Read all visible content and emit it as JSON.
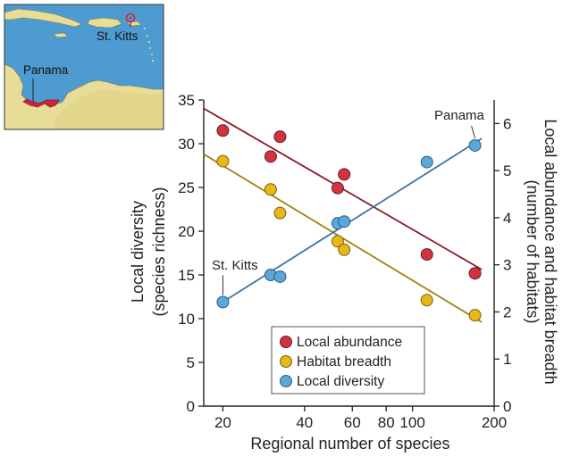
{
  "chart_data": {
    "type": "scatter",
    "title": "",
    "xlabel": "Regional number of species",
    "ylabel_left": [
      "Local diversity",
      "(species richness)"
    ],
    "ylabel_right": [
      "Local abundance and habitat breadth",
      "(number of habitats)"
    ],
    "x_scale": "log",
    "xlim": [
      17,
      200
    ],
    "xticks": [
      20,
      40,
      60,
      80,
      100,
      200
    ],
    "xtick_labels": [
      "20",
      "40",
      "60",
      "80",
      "100",
      "200"
    ],
    "ylim_left": [
      0,
      35
    ],
    "yticks_left": [
      0,
      5,
      10,
      15,
      20,
      25,
      30,
      35
    ],
    "ylim_right": [
      0,
      6.5
    ],
    "yticks_right": [
      0,
      1,
      2,
      3,
      4,
      5,
      6
    ],
    "grid": false,
    "legend_position": "bottom-center",
    "series": [
      {
        "name": "Local abundance",
        "axis": "right",
        "color": "#d0343e",
        "line_color": "#8b1a2b",
        "x": [
          20,
          30,
          32.5,
          53,
          56,
          113,
          170
        ],
        "y": [
          5.85,
          5.3,
          5.72,
          4.63,
          4.92,
          3.22,
          2.82
        ],
        "fit_line": [
          [
            17,
            6.32
          ],
          [
            180,
            2.9
          ]
        ]
      },
      {
        "name": "Habitat breadth",
        "axis": "right",
        "color": "#e8b718",
        "line_color": "#a38210",
        "x": [
          20,
          30,
          32.5,
          53,
          56,
          113,
          170
        ],
        "y": [
          5.2,
          4.6,
          4.1,
          3.5,
          3.32,
          2.25,
          1.93
        ],
        "fit_line": [
          [
            17,
            5.35
          ],
          [
            180,
            1.78
          ]
        ]
      },
      {
        "name": "Local diversity",
        "axis": "left",
        "color": "#5aa7d8",
        "line_color": "#3f73a3",
        "x": [
          20,
          30,
          32.5,
          53,
          56,
          113,
          170
        ],
        "y": [
          11.9,
          15,
          14.8,
          20.9,
          21.1,
          27.9,
          29.8
        ],
        "fit_line": [
          [
            20,
            11.9
          ],
          [
            180,
            30.6
          ]
        ]
      }
    ],
    "annotations": [
      {
        "text": "St. Kitts",
        "x": 20,
        "y": 11.9,
        "axis": "left"
      },
      {
        "text": "Panama",
        "x": 170,
        "y": 29.8,
        "axis": "left"
      }
    ]
  },
  "inset_map": {
    "labels": {
      "panama": "Panama",
      "st_kitts": "St. Kitts"
    },
    "colors": {
      "sea": "#4e9bd1",
      "land": "#e8dd97",
      "highlight": "#d3233a"
    }
  }
}
